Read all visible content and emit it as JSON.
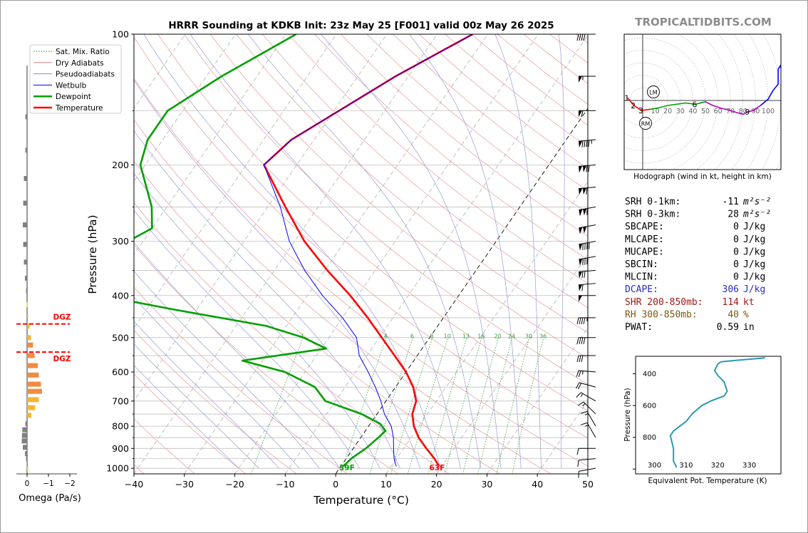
{
  "title": "HRRR Sounding at KDKB Init: 23z May 25 [F001] valid 00z May 26 2025",
  "brand": "TROPICALTIDBITS.COM",
  "legend": {
    "items": [
      {
        "label": "Sat. Mix. Ratio",
        "color": "#2e8b2e",
        "style": "dotted"
      },
      {
        "label": "Dry Adiabats",
        "color": "#e08080",
        "style": "solid"
      },
      {
        "label": "Pseudoadiabats",
        "color": "#8888cc",
        "style": "solid"
      },
      {
        "label": "Wetbulb",
        "color": "#0000ff",
        "style": "solid"
      },
      {
        "label": "Dewpoint",
        "color": "#00a000",
        "style": "thick"
      },
      {
        "label": "Temperature",
        "color": "#ff0000",
        "style": "thick"
      }
    ]
  },
  "chart_data": [
    {
      "type": "line",
      "title": "HRRR Sounding at KDKB Init: 23z May 25 [F001] valid 00z May 26 2025",
      "xlabel": "Temperature (°C)",
      "ylabel": "Pressure (hPa)",
      "xlim": [
        -40,
        50
      ],
      "ylim": [
        1030,
        100
      ],
      "y_scale": "log",
      "grid": true,
      "x_ticks": [
        "−40",
        "−30",
        "−20",
        "−10",
        "0",
        "10",
        "20",
        "30",
        "40",
        "50"
      ],
      "y_ticks": [
        "100",
        "200",
        "300",
        "400",
        "500",
        "600",
        "700",
        "800",
        "900",
        "1000"
      ],
      "mixing_ratio_labels": [
        "1",
        "4",
        "6",
        "8",
        "10",
        "13",
        "16",
        "20",
        "24",
        "30",
        "36"
      ],
      "surface_labels": {
        "dewpoint": "39F",
        "temperature": "63F"
      },
      "series": [
        {
          "name": "Temperature",
          "color": "#ff0000",
          "points": [
            [
              100,
              -33
            ],
            [
              125,
              -42.5
            ],
            [
              150,
              -49
            ],
            [
              175,
              -54.5
            ],
            [
              200,
              -56.5
            ],
            [
              250,
              -46.5
            ],
            [
              300,
              -38
            ],
            [
              350,
              -29.5
            ],
            [
              400,
              -21.5
            ],
            [
              450,
              -15
            ],
            [
              500,
              -9.5
            ],
            [
              550,
              -4.5
            ],
            [
              600,
              0
            ],
            [
              650,
              3.5
            ],
            [
              700,
              6
            ],
            [
              750,
              7
            ],
            [
              800,
              9
            ],
            [
              850,
              11.5
            ],
            [
              900,
              14.5
            ],
            [
              950,
              17.5
            ],
            [
              990,
              19.5
            ]
          ]
        },
        {
          "name": "Dewpoint",
          "color": "#00a000",
          "points": [
            [
              100,
              -68
            ],
            [
              125,
              -77
            ],
            [
              150,
              -83
            ],
            [
              175,
              -83
            ],
            [
              200,
              -81
            ],
            [
              250,
              -73
            ],
            [
              280,
              -70
            ],
            [
              300,
              -73
            ],
            [
              330,
              -78
            ],
            [
              360,
              -76
            ],
            [
              380,
              -71
            ],
            [
              400,
              -71
            ],
            [
              430,
              -55
            ],
            [
              470,
              -34
            ],
            [
              500,
              -25
            ],
            [
              530,
              -19
            ],
            [
              565,
              -34
            ],
            [
              600,
              -24
            ],
            [
              650,
              -16
            ],
            [
              700,
              -12
            ],
            [
              750,
              -3
            ],
            [
              790,
              2
            ],
            [
              820,
              4
            ],
            [
              850,
              3.5
            ],
            [
              900,
              2.5
            ],
            [
              950,
              1
            ],
            [
              990,
              0.5
            ]
          ]
        },
        {
          "name": "Wetbulb",
          "color": "#0000ff",
          "points": [
            [
              100,
              -33
            ],
            [
              125,
              -42.5
            ],
            [
              150,
              -49
            ],
            [
              175,
              -54.5
            ],
            [
              200,
              -56.5
            ],
            [
              250,
              -47.5
            ],
            [
              300,
              -41
            ],
            [
              350,
              -34
            ],
            [
              400,
              -27
            ],
            [
              450,
              -20
            ],
            [
              500,
              -14.5
            ],
            [
              550,
              -11.5
            ],
            [
              600,
              -7.5
            ],
            [
              650,
              -4
            ],
            [
              700,
              -1
            ],
            [
              750,
              1.5
            ],
            [
              800,
              4.5
            ],
            [
              850,
              6.5
            ],
            [
              900,
              8
            ],
            [
              950,
              9.5
            ],
            [
              990,
              11
            ]
          ]
        }
      ]
    },
    {
      "type": "bar",
      "xlabel": "Omega (Pa/s)",
      "x_ticks": [
        "0",
        "−1",
        "−2"
      ],
      "dgz_label": "DGZ",
      "dgz_levels": [
        465,
        540
      ],
      "points": [
        [
          155,
          0.08
        ],
        [
          185,
          0.08
        ],
        [
          215,
          0.15
        ],
        [
          245,
          0.18
        ],
        [
          275,
          0.2
        ],
        [
          305,
          0.18
        ],
        [
          335,
          0.15
        ],
        [
          365,
          0.1
        ],
        [
          390,
          0.05
        ],
        [
          420,
          0.02
        ],
        [
          445,
          -0.05
        ],
        [
          470,
          -0.12
        ],
        [
          500,
          -0.18
        ],
        [
          520,
          -0.28
        ],
        [
          550,
          -0.35
        ],
        [
          580,
          -0.5
        ],
        [
          610,
          -0.55
        ],
        [
          640,
          -0.65
        ],
        [
          665,
          -0.7
        ],
        [
          695,
          -0.55
        ],
        [
          725,
          -0.38
        ],
        [
          755,
          -0.2
        ],
        [
          790,
          0.08
        ],
        [
          815,
          0.22
        ],
        [
          840,
          0.24
        ],
        [
          865,
          0.25
        ],
        [
          895,
          0.2
        ],
        [
          925,
          0.1
        ],
        [
          950,
          0.05
        ],
        [
          985,
          0.02
        ],
        [
          1005,
          -0.01
        ]
      ]
    },
    {
      "type": "line",
      "title": "Hodograph (wind in kt, height in km)",
      "ring_labels": [
        "10",
        "20",
        "30",
        "40",
        "50",
        "60",
        "70",
        "80",
        "90",
        "100"
      ],
      "markers": [
        "LM",
        "RM"
      ],
      "height_labels": [
        "1",
        "2",
        "3",
        "6",
        "9"
      ],
      "points": [
        [
          -12,
          2
        ],
        [
          -7,
          -4
        ],
        [
          -1,
          -8
        ],
        [
          6,
          -7
        ],
        [
          12,
          -6
        ],
        [
          20,
          -4
        ],
        [
          27,
          -3
        ],
        [
          34,
          -2
        ],
        [
          42,
          -3
        ],
        [
          50,
          -1
        ],
        [
          56,
          -4
        ],
        [
          62,
          -6
        ],
        [
          70,
          -8
        ],
        [
          76,
          -10
        ],
        [
          80,
          -11
        ],
        [
          84,
          -9
        ],
        [
          88,
          -8
        ],
        [
          94,
          -4
        ],
        [
          100,
          1
        ],
        [
          104,
          8
        ],
        [
          108,
          13
        ],
        [
          108,
          25
        ],
        [
          110,
          28
        ],
        [
          111,
          20
        ]
      ]
    },
    {
      "type": "line",
      "xlabel": "Equivalent Pot. Temperature (K)",
      "ylabel": "Pressure (hPa)",
      "x_ticks": [
        "300",
        "310",
        "320",
        "330"
      ],
      "y_ticks": [
        "400",
        "600",
        "800"
      ],
      "points": [
        [
          300,
          335
        ],
        [
          315,
          326
        ],
        [
          325,
          321
        ],
        [
          340,
          320
        ],
        [
          380,
          319
        ],
        [
          410,
          320
        ],
        [
          450,
          322
        ],
        [
          510,
          323
        ],
        [
          540,
          322
        ],
        [
          570,
          318
        ],
        [
          600,
          315
        ],
        [
          650,
          312
        ],
        [
          700,
          310
        ],
        [
          730,
          308
        ],
        [
          760,
          306
        ],
        [
          790,
          305
        ],
        [
          830,
          305.5
        ],
        [
          870,
          306
        ],
        [
          910,
          306
        ],
        [
          950,
          306
        ],
        [
          970,
          306.5
        ],
        [
          990,
          307
        ]
      ]
    }
  ],
  "stats": {
    "rows": [
      {
        "label": "SRH 0-1km:",
        "value": "-11",
        "unit": "m²s⁻²",
        "color": "#000000"
      },
      {
        "label": "SRH 0-3km:",
        "value": "28",
        "unit": "m²s⁻²",
        "color": "#000000"
      },
      {
        "label": "SBCAPE:",
        "value": "0",
        "unit": "J/kg",
        "color": "#000000"
      },
      {
        "label": "MLCAPE:",
        "value": "0",
        "unit": "J/kg",
        "color": "#000000"
      },
      {
        "label": "MUCAPE:",
        "value": "0",
        "unit": "J/kg",
        "color": "#000000"
      },
      {
        "label": "SBCIN:",
        "value": "0",
        "unit": "J/kg",
        "color": "#000000"
      },
      {
        "label": "MLCIN:",
        "value": "0",
        "unit": "J/kg",
        "color": "#000000"
      },
      {
        "label": "DCAPE:",
        "value": "306",
        "unit": "J/kg",
        "color": "#2a2acc"
      },
      {
        "label": "SHR 200-850mb:",
        "value": "114",
        "unit": "kt",
        "color": "#a01818"
      },
      {
        "label": "RH 300-850mb:",
        "value": "40",
        "unit": "%",
        "color": "#7a5a10"
      },
      {
        "label": "PWAT:",
        "value": "0.59",
        "unit": "in",
        "color": "#000000"
      }
    ]
  },
  "wind_barbs": [
    {
      "p": 100,
      "speed": 40,
      "dir": 270
    },
    {
      "p": 125,
      "speed": 55,
      "dir": 270
    },
    {
      "p": 150,
      "speed": 60,
      "dir": 270
    },
    {
      "p": 175,
      "speed": 95,
      "dir": 265
    },
    {
      "p": 200,
      "speed": 120,
      "dir": 265
    },
    {
      "p": 225,
      "speed": 110,
      "dir": 265
    },
    {
      "p": 250,
      "speed": 110,
      "dir": 260
    },
    {
      "p": 275,
      "speed": 100,
      "dir": 260
    },
    {
      "p": 300,
      "speed": 90,
      "dir": 260
    },
    {
      "p": 325,
      "speed": 80,
      "dir": 260
    },
    {
      "p": 350,
      "speed": 70,
      "dir": 265
    },
    {
      "p": 375,
      "speed": 60,
      "dir": 265
    },
    {
      "p": 400,
      "speed": 50,
      "dir": 270
    },
    {
      "p": 450,
      "speed": 45,
      "dir": 270
    },
    {
      "p": 500,
      "speed": 40,
      "dir": 270
    },
    {
      "p": 550,
      "speed": 30,
      "dir": 270
    },
    {
      "p": 600,
      "speed": 25,
      "dir": 275
    },
    {
      "p": 650,
      "speed": 20,
      "dir": 285
    },
    {
      "p": 700,
      "speed": 15,
      "dir": 300
    },
    {
      "p": 750,
      "speed": 15,
      "dir": 315
    },
    {
      "p": 800,
      "speed": 15,
      "dir": 330
    },
    {
      "p": 850,
      "speed": 15,
      "dir": 330
    },
    {
      "p": 900,
      "speed": 10,
      "dir": 270
    },
    {
      "p": 950,
      "speed": 10,
      "dir": 265
    },
    {
      "p": 1000,
      "speed": 10,
      "dir": 260
    }
  ]
}
